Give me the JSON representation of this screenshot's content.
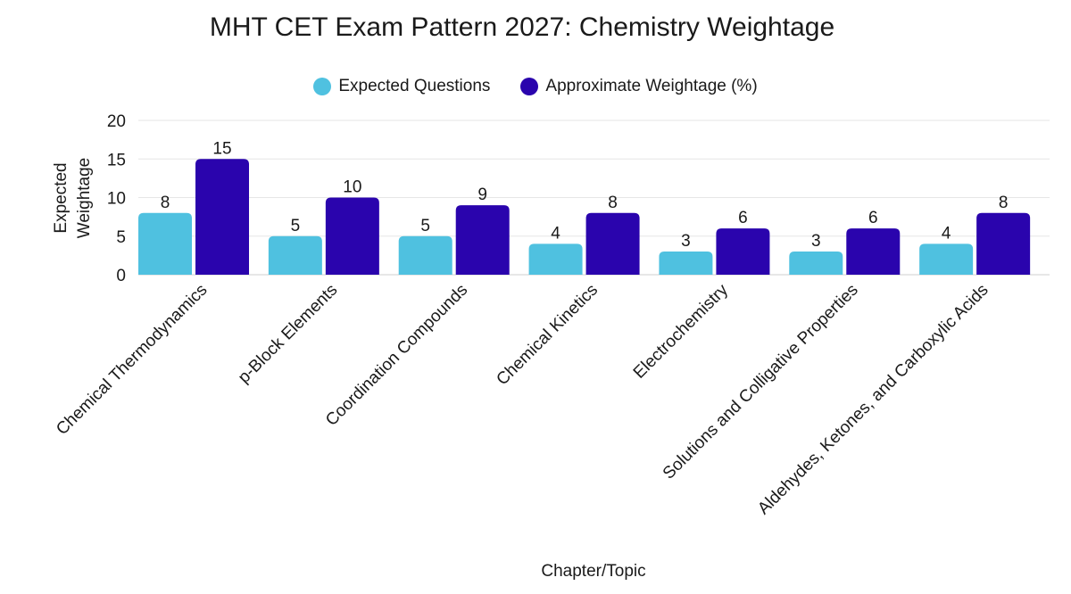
{
  "chart_data": {
    "type": "bar",
    "title": "MHT CET Exam Pattern 2027: Chemistry Weightage",
    "xlabel": "Chapter/Topic",
    "ylabel_lines": [
      "Expected",
      "Weightage"
    ],
    "ylim": [
      0,
      20
    ],
    "yticks": [
      0,
      5,
      10,
      15,
      20
    ],
    "grid": true,
    "legend_position": "top-center",
    "categories": [
      "Chemical Thermodynamics",
      "p-Block Elements",
      "Coordination Compounds",
      "Chemical Kinetics",
      "Electrochemistry",
      "Solutions and Colligative Properties",
      "Aldehydes, Ketones, and Carboxylic Acids"
    ],
    "series": [
      {
        "name": "Expected Questions",
        "color": "#4fc1e0",
        "values": [
          8,
          5,
          5,
          4,
          3,
          3,
          4
        ]
      },
      {
        "name": "Approximate Weightage (%)",
        "color": "#2a04ad",
        "values": [
          15,
          10,
          9,
          8,
          6,
          6,
          8
        ]
      }
    ]
  }
}
